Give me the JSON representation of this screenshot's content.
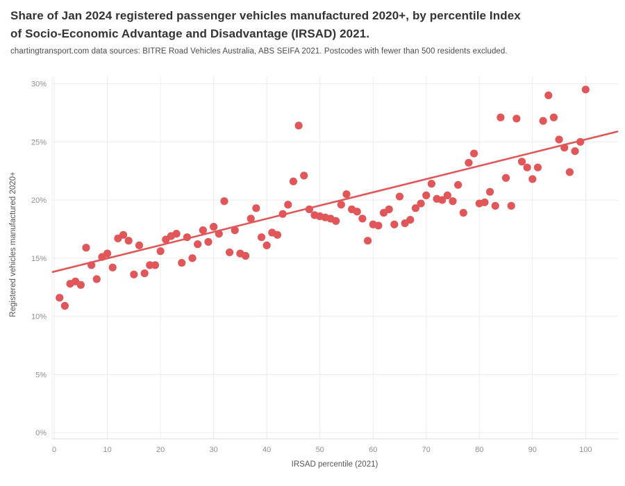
{
  "header": {
    "title_line1": "Share of Jan 2024 registered passenger vehicles manufactured 2020+, by percentile Index",
    "title_line2": "of Socio-Economic Advantage and Disadvantage (IRSAD) 2021.",
    "subtitle": "chartingtransport.com  data sources: BITRE Road Vehicles Australia, ABS SEIFA 2021. Postcodes with fewer than 500 residents excluded."
  },
  "chart_data": {
    "type": "scatter",
    "title": "Share of Jan 2024 registered passenger vehicles manufactured 2020+, by percentile Index of Socio-Economic Advantage and Disadvantage (IRSAD) 2021.",
    "xlabel": "IRSAD percentile (2021)",
    "ylabel": "Registered vehicles manufactured 2020+",
    "xlim": [
      -0.4,
      106.1
    ],
    "ylim": [
      -0.53,
      30.63
    ],
    "x_ticks": [
      0,
      10,
      20,
      30,
      40,
      50,
      60,
      70,
      80,
      90,
      100
    ],
    "y_ticks": [
      0,
      5,
      10,
      15,
      20,
      25,
      30
    ],
    "y_tick_suffix": "%",
    "grid": true,
    "legend": "none",
    "point_color": "#e15759",
    "trend_color": "#e15759",
    "trend_line": {
      "x1": -0.4,
      "y1": 13.8,
      "x2": 106.1,
      "y2": 25.9
    },
    "points": [
      [
        1,
        11.6
      ],
      [
        2,
        10.9
      ],
      [
        3,
        12.8
      ],
      [
        4,
        13.0
      ],
      [
        5,
        12.7
      ],
      [
        6,
        15.9
      ],
      [
        7,
        14.4
      ],
      [
        8,
        13.2
      ],
      [
        9,
        15.1
      ],
      [
        10,
        15.4
      ],
      [
        11,
        14.2
      ],
      [
        12,
        16.7
      ],
      [
        13,
        17.0
      ],
      [
        14,
        16.5
      ],
      [
        15,
        13.6
      ],
      [
        16,
        16.1
      ],
      [
        17,
        13.7
      ],
      [
        18,
        14.4
      ],
      [
        19,
        14.4
      ],
      [
        20,
        15.6
      ],
      [
        21,
        16.6
      ],
      [
        22,
        16.9
      ],
      [
        23,
        17.1
      ],
      [
        24,
        14.6
      ],
      [
        25,
        16.8
      ],
      [
        26,
        15.0
      ],
      [
        27,
        16.2
      ],
      [
        28,
        17.4
      ],
      [
        29,
        16.4
      ],
      [
        30,
        17.7
      ],
      [
        31,
        17.1
      ],
      [
        32,
        19.9
      ],
      [
        33,
        15.5
      ],
      [
        34,
        17.4
      ],
      [
        35,
        15.4
      ],
      [
        36,
        15.2
      ],
      [
        37,
        18.4
      ],
      [
        38,
        19.3
      ],
      [
        39,
        16.8
      ],
      [
        40,
        16.1
      ],
      [
        41,
        17.2
      ],
      [
        42,
        17.0
      ],
      [
        43,
        18.8
      ],
      [
        44,
        19.6
      ],
      [
        45,
        21.6
      ],
      [
        46,
        26.4
      ],
      [
        47,
        22.1
      ],
      [
        48,
        19.2
      ],
      [
        49,
        18.7
      ],
      [
        50,
        18.6
      ],
      [
        51,
        18.5
      ],
      [
        52,
        18.4
      ],
      [
        53,
        18.2
      ],
      [
        54,
        19.6
      ],
      [
        55,
        20.5
      ],
      [
        56,
        19.2
      ],
      [
        57,
        19.0
      ],
      [
        58,
        18.4
      ],
      [
        59,
        16.5
      ],
      [
        60,
        17.9
      ],
      [
        61,
        17.8
      ],
      [
        62,
        18.9
      ],
      [
        63,
        19.2
      ],
      [
        64,
        17.9
      ],
      [
        65,
        20.3
      ],
      [
        66,
        18.0
      ],
      [
        67,
        18.3
      ],
      [
        68,
        19.3
      ],
      [
        69,
        19.7
      ],
      [
        70,
        20.4
      ],
      [
        71,
        21.4
      ],
      [
        72,
        20.1
      ],
      [
        73,
        20.0
      ],
      [
        74,
        20.4
      ],
      [
        75,
        19.9
      ],
      [
        76,
        21.3
      ],
      [
        77,
        18.9
      ],
      [
        78,
        23.2
      ],
      [
        79,
        24.0
      ],
      [
        80,
        19.7
      ],
      [
        81,
        19.8
      ],
      [
        82,
        20.7
      ],
      [
        83,
        19.5
      ],
      [
        84,
        27.1
      ],
      [
        85,
        21.9
      ],
      [
        86,
        19.5
      ],
      [
        87,
        27.0
      ],
      [
        88,
        23.3
      ],
      [
        89,
        22.8
      ],
      [
        90,
        21.8
      ],
      [
        91,
        22.8
      ],
      [
        92,
        26.8
      ],
      [
        93,
        29.0
      ],
      [
        94,
        27.1
      ],
      [
        95,
        25.2
      ],
      [
        96,
        24.5
      ],
      [
        97,
        22.4
      ],
      [
        98,
        24.2
      ],
      [
        99,
        25.0
      ],
      [
        100,
        29.5
      ]
    ]
  }
}
